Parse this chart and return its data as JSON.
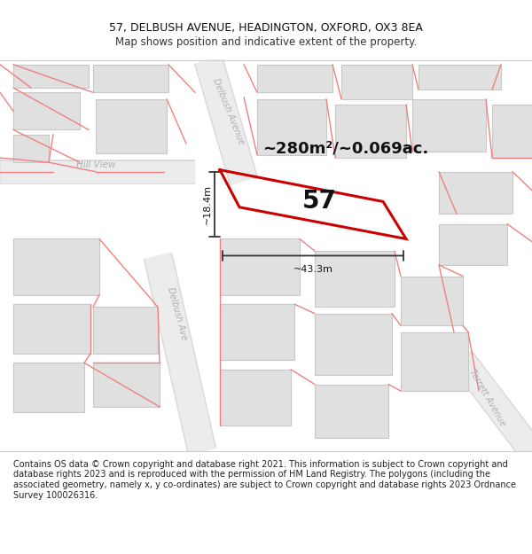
{
  "title_line1": "57, DELBUSH AVENUE, HEADINGTON, OXFORD, OX3 8EA",
  "title_line2": "Map shows position and indicative extent of the property.",
  "footer_text": "Contains OS data © Crown copyright and database right 2021. This information is subject to Crown copyright and database rights 2023 and is reproduced with the permission of HM Land Registry. The polygons (including the associated geometry, namely x, y co-ordinates) are subject to Crown copyright and database rights 2023 Ordnance Survey 100026316.",
  "area_text": "~280m²/~0.069ac.",
  "property_number": "57",
  "dim_width": "~43.3m",
  "dim_height": "~18.4m",
  "bg_color": "#ffffff",
  "map_bg": "#f7f7f7",
  "pink_line_color": "#f08080",
  "red_outline_color": "#cc0000",
  "dim_line_color": "#333333",
  "title_fontsize": 9,
  "subtitle_fontsize": 8.5,
  "footer_fontsize": 7.0,
  "area_fontsize": 13,
  "number_fontsize": 20
}
